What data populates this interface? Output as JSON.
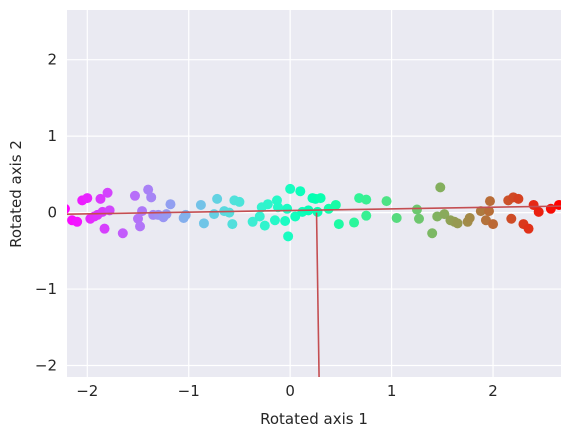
{
  "chart_data": {
    "type": "scatter",
    "title": "",
    "xlabel": "Rotated axis 1",
    "ylabel": "Rotated axis 2",
    "xlim": [
      -2.2,
      2.67
    ],
    "ylim": [
      -2.15,
      2.65
    ],
    "xticks": [
      -2,
      -1,
      0,
      1,
      2
    ],
    "yticks": [
      -2,
      -1,
      0,
      1,
      2
    ],
    "xtick_labels": [
      "−2",
      "−1",
      "0",
      "1",
      "2"
    ],
    "ytick_labels": [
      "−2",
      "−1",
      "0",
      "1",
      "2"
    ],
    "grid": true,
    "background_color": "#EAEAF2",
    "grid_color": "#FFFFFF",
    "colormap": "rainbow",
    "line_color": "#C44E52",
    "points": [
      [
        -2.22,
        0.05
      ],
      [
        -2.15,
        -0.1
      ],
      [
        -2.1,
        -0.12
      ],
      [
        -2.05,
        0.16
      ],
      [
        -2.0,
        0.19
      ],
      [
        -1.97,
        -0.08
      ],
      [
        -1.93,
        -0.05
      ],
      [
        -1.9,
        -0.03
      ],
      [
        -1.87,
        0.18
      ],
      [
        -1.85,
        0.01
      ],
      [
        -1.83,
        -0.21
      ],
      [
        -1.8,
        0.26
      ],
      [
        -1.78,
        0.03
      ],
      [
        -1.65,
        -0.27
      ],
      [
        -1.53,
        0.22
      ],
      [
        -1.5,
        -0.08
      ],
      [
        -1.48,
        -0.18
      ],
      [
        -1.46,
        0.02
      ],
      [
        -1.4,
        0.3
      ],
      [
        -1.37,
        0.2
      ],
      [
        -1.35,
        -0.03
      ],
      [
        -1.3,
        -0.03
      ],
      [
        -1.25,
        -0.06
      ],
      [
        -1.22,
        -0.02
      ],
      [
        -1.18,
        0.11
      ],
      [
        -1.05,
        -0.07
      ],
      [
        -1.03,
        -0.03
      ],
      [
        -0.88,
        0.1
      ],
      [
        -0.85,
        -0.14
      ],
      [
        -0.75,
        -0.02
      ],
      [
        -0.72,
        0.18
      ],
      [
        -0.65,
        0.02
      ],
      [
        -0.6,
        0.0
      ],
      [
        -0.57,
        -0.15
      ],
      [
        -0.55,
        0.16
      ],
      [
        -0.5,
        0.14
      ],
      [
        -0.37,
        -0.12
      ],
      [
        -0.3,
        -0.05
      ],
      [
        -0.28,
        0.07
      ],
      [
        -0.25,
        -0.17
      ],
      [
        -0.22,
        0.11
      ],
      [
        -0.15,
        -0.1
      ],
      [
        -0.13,
        0.16
      ],
      [
        -0.12,
        0.07
      ],
      [
        -0.05,
        -0.11
      ],
      [
        -0.03,
        0.05
      ],
      [
        -0.02,
        -0.31
      ],
      [
        0.0,
        0.31
      ],
      [
        0.05,
        -0.05
      ],
      [
        0.1,
        0.28
      ],
      [
        0.12,
        0.01
      ],
      [
        0.18,
        0.03
      ],
      [
        0.22,
        0.19
      ],
      [
        0.25,
        0.18
      ],
      [
        0.27,
        0.01
      ],
      [
        0.3,
        0.19
      ],
      [
        0.38,
        0.05
      ],
      [
        0.45,
        0.1
      ],
      [
        0.48,
        -0.15
      ],
      [
        0.63,
        -0.13
      ],
      [
        0.68,
        0.19
      ],
      [
        0.75,
        0.17
      ],
      [
        0.75,
        -0.04
      ],
      [
        0.95,
        0.15
      ],
      [
        1.05,
        -0.07
      ],
      [
        1.25,
        0.04
      ],
      [
        1.27,
        -0.08
      ],
      [
        1.4,
        -0.27
      ],
      [
        1.45,
        -0.05
      ],
      [
        1.48,
        0.33
      ],
      [
        1.52,
        -0.02
      ],
      [
        1.58,
        -0.1
      ],
      [
        1.62,
        -0.12
      ],
      [
        1.65,
        -0.14
      ],
      [
        1.75,
        -0.12
      ],
      [
        1.77,
        -0.07
      ],
      [
        1.88,
        0.02
      ],
      [
        1.93,
        -0.1
      ],
      [
        1.96,
        0.02
      ],
      [
        1.97,
        0.15
      ],
      [
        2.0,
        -0.15
      ],
      [
        2.15,
        0.16
      ],
      [
        2.18,
        -0.08
      ],
      [
        2.2,
        0.2
      ],
      [
        2.25,
        0.18
      ],
      [
        2.3,
        -0.15
      ],
      [
        2.35,
        -0.21
      ],
      [
        2.4,
        0.1
      ],
      [
        2.45,
        0.01
      ],
      [
        2.57,
        0.05
      ],
      [
        2.65,
        0.1
      ]
    ],
    "line_1": {
      "x": [
        -2.2,
        2.67
      ],
      "y": [
        -0.02,
        0.085
      ]
    },
    "line_2": {
      "x": [
        0.26,
        0.285
      ],
      "y": [
        0.0,
        -2.15
      ]
    }
  }
}
